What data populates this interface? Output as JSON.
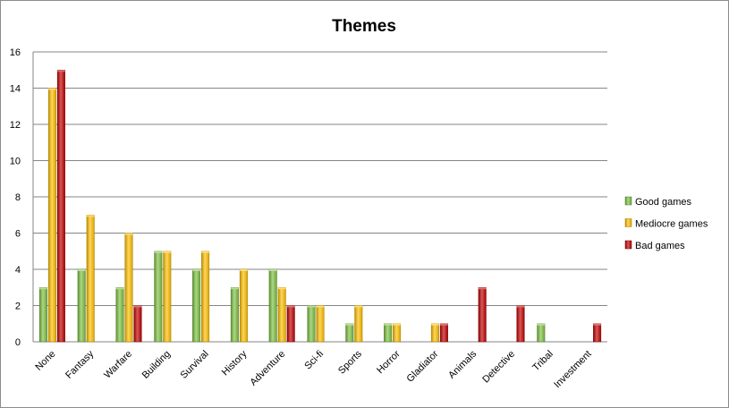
{
  "chart_data": {
    "type": "bar",
    "title": "Themes",
    "xlabel": "",
    "ylabel": "",
    "ylim": [
      0,
      16
    ],
    "yticks": [
      0,
      2,
      4,
      6,
      8,
      10,
      12,
      14,
      16
    ],
    "grid": true,
    "legend_position": "right",
    "categories": [
      "None",
      "Fantasy",
      "Warfare",
      "Building",
      "Survival",
      "History",
      "Adventure",
      "Sci-fi",
      "Sports",
      "Horror",
      "Gladiator",
      "Animals",
      "Detective",
      "Tribal",
      "Investment"
    ],
    "series": [
      {
        "name": "Good games",
        "color": "#7ec142",
        "values": [
          3,
          4,
          3,
          5,
          4,
          3,
          4,
          2,
          1,
          1,
          0,
          0,
          0,
          1,
          0
        ]
      },
      {
        "name": "Mediocre games",
        "color": "#ffc000",
        "values": [
          14,
          7,
          6,
          5,
          5,
          4,
          3,
          2,
          2,
          1,
          1,
          0,
          0,
          0,
          0
        ]
      },
      {
        "name": "Bad games",
        "color": "#c00000",
        "values": [
          15,
          0,
          2,
          0,
          0,
          0,
          2,
          0,
          0,
          0,
          1,
          3,
          2,
          0,
          1
        ]
      }
    ]
  }
}
